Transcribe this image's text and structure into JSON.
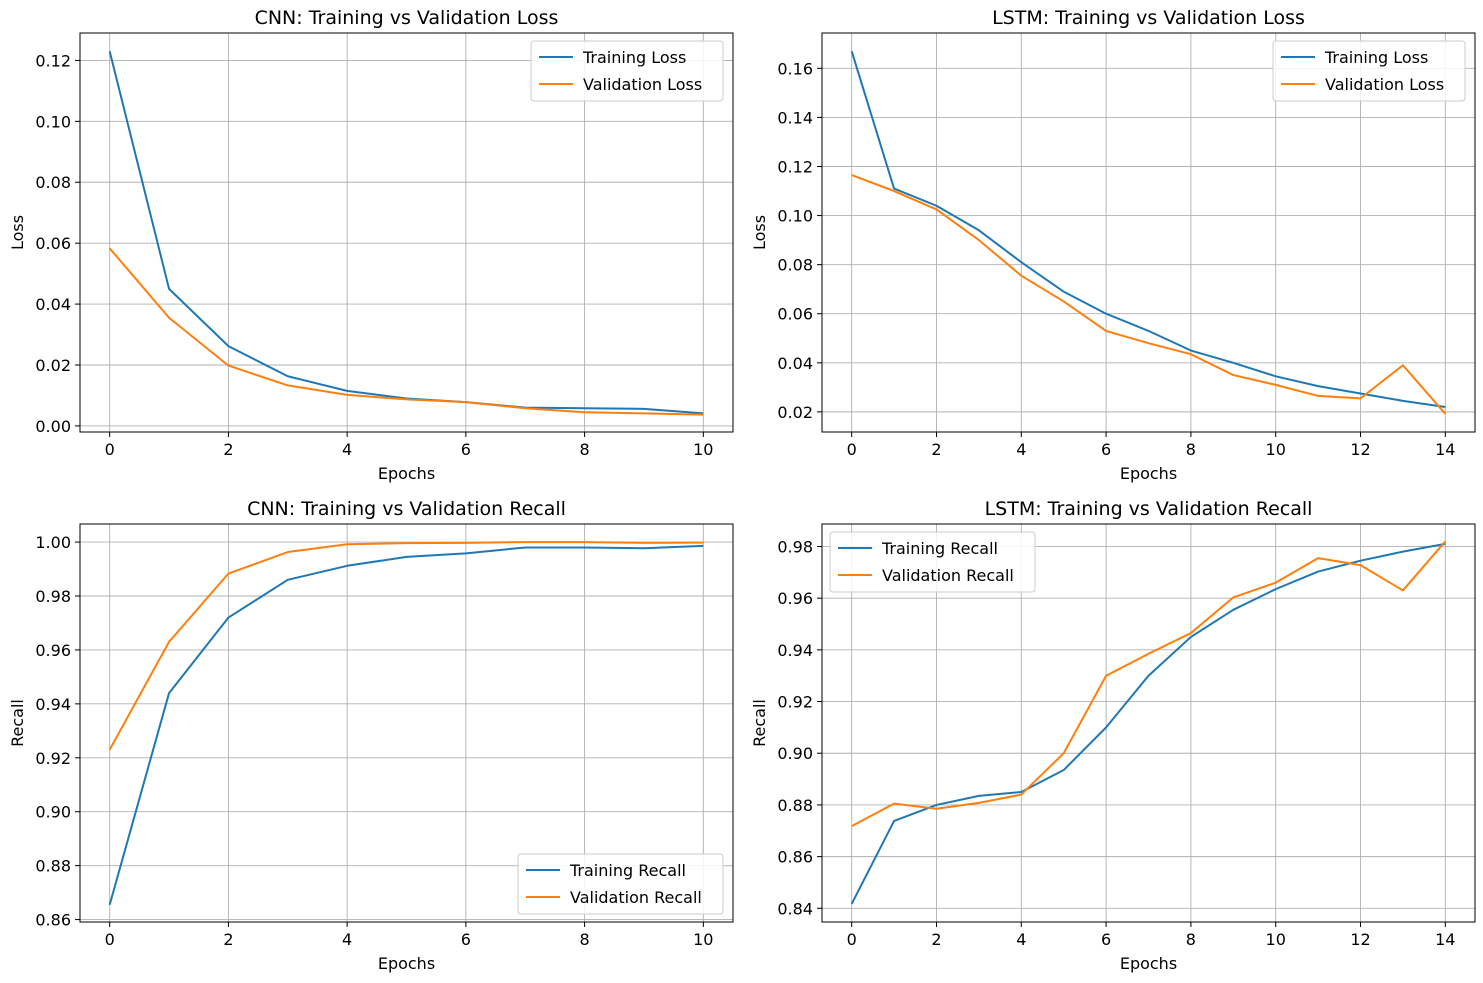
{
  "colors": {
    "training": "#1f77b4",
    "validation": "#ff7f0e"
  },
  "chart_data": [
    {
      "type": "line",
      "title": "CNN: Training vs Validation Loss",
      "xlabel": "Epochs",
      "ylabel": "Loss",
      "xlim": [
        -0.5,
        10.5
      ],
      "ylim": [
        -0.002,
        0.129
      ],
      "xticks": [
        0,
        2,
        4,
        6,
        8,
        10
      ],
      "yticks": [
        0.0,
        0.02,
        0.04,
        0.06,
        0.08,
        0.1,
        0.12
      ],
      "ytick_labels": [
        "0.00",
        "0.02",
        "0.04",
        "0.06",
        "0.08",
        "0.10",
        "0.12"
      ],
      "grid": true,
      "legend_position": "upper right",
      "x": [
        0,
        1,
        2,
        3,
        4,
        5,
        6,
        7,
        8,
        9,
        10
      ],
      "series": [
        {
          "name": "Training Loss",
          "color": "#1f77b4",
          "values": [
            0.123,
            0.045,
            0.0262,
            0.0163,
            0.0115,
            0.009,
            0.0078,
            0.006,
            0.0058,
            0.0056,
            0.0041
          ]
        },
        {
          "name": "Validation Loss",
          "color": "#ff7f0e",
          "values": [
            0.0583,
            0.0355,
            0.0198,
            0.0133,
            0.0102,
            0.0087,
            0.0078,
            0.0058,
            0.0045,
            0.0041,
            0.0037
          ]
        }
      ]
    },
    {
      "type": "line",
      "title": "LSTM: Training vs Validation Loss",
      "xlabel": "Epochs",
      "ylabel": "Loss",
      "xlim": [
        -0.7,
        14.7
      ],
      "ylim": [
        0.0118,
        0.1744
      ],
      "xticks": [
        0,
        2,
        4,
        6,
        8,
        10,
        12,
        14
      ],
      "yticks": [
        0.02,
        0.04,
        0.06,
        0.08,
        0.1,
        0.12,
        0.14,
        0.16
      ],
      "ytick_labels": [
        "0.02",
        "0.04",
        "0.06",
        "0.08",
        "0.10",
        "0.12",
        "0.14",
        "0.16"
      ],
      "grid": true,
      "legend_position": "upper right",
      "x": [
        0,
        1,
        2,
        3,
        4,
        5,
        6,
        7,
        8,
        9,
        10,
        11,
        12,
        13,
        14
      ],
      "series": [
        {
          "name": "Training Loss",
          "color": "#1f77b4",
          "values": [
            0.167,
            0.111,
            0.104,
            0.094,
            0.081,
            0.069,
            0.06,
            0.053,
            0.045,
            0.04,
            0.0345,
            0.0305,
            0.0275,
            0.0245,
            0.022
          ]
        },
        {
          "name": "Validation Loss",
          "color": "#ff7f0e",
          "values": [
            0.1165,
            0.11,
            0.1025,
            0.09,
            0.0755,
            0.065,
            0.053,
            0.048,
            0.0435,
            0.035,
            0.031,
            0.0265,
            0.0255,
            0.039,
            0.0192
          ]
        }
      ]
    },
    {
      "type": "line",
      "title": "CNN: Training vs Validation Recall",
      "xlabel": "Epochs",
      "ylabel": "Recall",
      "xlim": [
        -0.5,
        10.5
      ],
      "ylim": [
        0.8591,
        1.0067
      ],
      "xticks": [
        0,
        2,
        4,
        6,
        8,
        10
      ],
      "yticks": [
        0.86,
        0.88,
        0.9,
        0.92,
        0.94,
        0.96,
        0.98,
        1.0
      ],
      "ytick_labels": [
        "0.86",
        "0.88",
        "0.90",
        "0.92",
        "0.94",
        "0.96",
        "0.98",
        "1.00"
      ],
      "grid": true,
      "legend_position": "lower right",
      "x": [
        0,
        1,
        2,
        3,
        4,
        5,
        6,
        7,
        8,
        9,
        10
      ],
      "series": [
        {
          "name": "Training Recall",
          "color": "#1f77b4",
          "values": [
            0.8655,
            0.944,
            0.972,
            0.986,
            0.9912,
            0.9945,
            0.9958,
            0.998,
            0.998,
            0.9977,
            0.9986
          ]
        },
        {
          "name": "Validation Recall",
          "color": "#ff7f0e",
          "values": [
            0.923,
            0.963,
            0.9883,
            0.9963,
            0.9992,
            0.9996,
            0.9997,
            1.0,
            1.0,
            0.9997,
            0.9998
          ]
        }
      ]
    },
    {
      "type": "line",
      "title": "LSTM: Training vs Validation Recall",
      "xlabel": "Epochs",
      "ylabel": "Recall",
      "xlim": [
        -0.7,
        14.7
      ],
      "ylim": [
        0.8347,
        0.9887
      ],
      "xticks": [
        0,
        2,
        4,
        6,
        8,
        10,
        12,
        14
      ],
      "yticks": [
        0.84,
        0.86,
        0.88,
        0.9,
        0.92,
        0.94,
        0.96,
        0.98
      ],
      "ytick_labels": [
        "0.84",
        "0.86",
        "0.88",
        "0.90",
        "0.92",
        "0.94",
        "0.96",
        "0.98"
      ],
      "grid": true,
      "legend_position": "upper left",
      "x": [
        0,
        1,
        2,
        3,
        4,
        5,
        6,
        7,
        8,
        9,
        10,
        11,
        12,
        13,
        14
      ],
      "series": [
        {
          "name": "Training Recall",
          "color": "#1f77b4",
          "values": [
            0.8417,
            0.8738,
            0.88,
            0.8835,
            0.885,
            0.8935,
            0.91,
            0.93,
            0.945,
            0.9555,
            0.9635,
            0.9703,
            0.9745,
            0.978,
            0.981
          ]
        },
        {
          "name": "Validation Recall",
          "color": "#ff7f0e",
          "values": [
            0.8718,
            0.8805,
            0.8785,
            0.8808,
            0.884,
            0.9,
            0.93,
            0.9385,
            0.9465,
            0.9603,
            0.966,
            0.9755,
            0.9728,
            0.963,
            0.982
          ]
        }
      ]
    }
  ]
}
